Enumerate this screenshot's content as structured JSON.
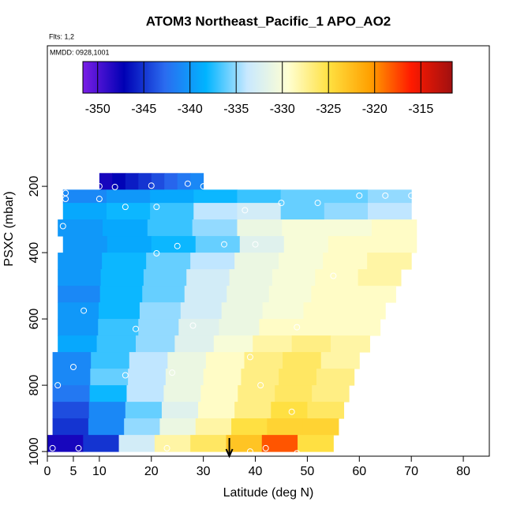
{
  "chart_data": {
    "type": "heatmap",
    "title": "ATOM3 Northeast_Pacific_1 APO_AO2",
    "annotations": [
      "Flts: 1,2",
      "MMDD: 0928,1001"
    ],
    "x_label": "Latitude (deg N)",
    "y_label": "PSXC (mbar)",
    "xlim": [
      0,
      85
    ],
    "xticks": [
      0,
      5,
      10,
      20,
      30,
      40,
      50,
      60,
      70,
      80
    ],
    "ylim": [
      1014,
      -224
    ],
    "yticks": [
      200,
      400,
      600,
      800,
      1000
    ],
    "colorbar_lim": [
      -351.6,
      -311.6
    ],
    "colorbar_ticks": [
      -350,
      -345,
      -340,
      -335,
      -330,
      -325,
      -320,
      -315
    ],
    "colorscale": [
      "#7a1ee6",
      "#0000b4",
      "#2a6cf0",
      "#00b4ff",
      "#c8e8ff",
      "#ffffd2",
      "#ffe040",
      "#ffa000",
      "#ff1a00",
      "#a01010"
    ],
    "arrow_x": 35,
    "rows": [
      {
        "p0": 160,
        "p1": 210,
        "x0": 10,
        "x1": 30,
        "values": [
          -348,
          -347,
          -346,
          -345,
          -344,
          -343,
          -342,
          -341
        ]
      },
      {
        "p0": 210,
        "p1": 250,
        "x0": 3,
        "x1": 70,
        "values": [
          -341,
          -340,
          -339,
          -338,
          -337,
          -336,
          -336,
          -335
        ]
      },
      {
        "p0": 250,
        "p1": 300,
        "x0": 3,
        "x1": 70,
        "values": [
          -339,
          -338,
          -337,
          -334,
          -333,
          -336,
          -335,
          -334
        ]
      },
      {
        "p0": 300,
        "p1": 350,
        "x0": 2,
        "x1": 71,
        "values": [
          -340,
          -339,
          -337,
          -335,
          -331,
          -330,
          -330,
          -329
        ]
      },
      {
        "p0": 350,
        "p1": 400,
        "x0": 3,
        "x1": 71,
        "values": [
          -340,
          -339,
          -338,
          -336,
          -332,
          -330,
          -329,
          -329
        ]
      },
      {
        "p0": 400,
        "p1": 450,
        "x0": 2,
        "x1": 70,
        "values": [
          -340,
          -338,
          -336,
          -334,
          -331,
          -330,
          -329,
          -328
        ]
      },
      {
        "p0": 450,
        "p1": 500,
        "x0": 2,
        "x1": 68,
        "values": [
          -340,
          -338,
          -336,
          -333,
          -331,
          -330,
          -329,
          -328
        ]
      },
      {
        "p0": 500,
        "p1": 550,
        "x0": 2,
        "x1": 67,
        "values": [
          -341,
          -338,
          -336,
          -333,
          -331,
          -330,
          -329,
          -329
        ]
      },
      {
        "p0": 550,
        "p1": 600,
        "x0": 2,
        "x1": 65,
        "values": [
          -340,
          -338,
          -335,
          -333,
          -331,
          -330,
          -329,
          -329
        ]
      },
      {
        "p0": 600,
        "p1": 650,
        "x0": 2,
        "x1": 64,
        "values": [
          -340,
          -337,
          -335,
          -332,
          -331,
          -329,
          -329,
          -329
        ]
      },
      {
        "p0": 650,
        "p1": 700,
        "x0": 2,
        "x1": 62,
        "values": [
          -339,
          -337,
          -335,
          -332,
          -330,
          -328,
          -327,
          -328
        ]
      },
      {
        "p0": 700,
        "p1": 750,
        "x0": 1,
        "x1": 60,
        "values": [
          -341,
          -337,
          -334,
          -331,
          -329,
          -327,
          -326,
          -328
        ]
      },
      {
        "p0": 750,
        "p1": 800,
        "x0": 1,
        "x1": 59,
        "values": [
          -341,
          -336,
          -334,
          -331,
          -329,
          -327,
          -326,
          -327
        ]
      },
      {
        "p0": 800,
        "p1": 850,
        "x0": 1,
        "x1": 58,
        "values": [
          -342,
          -338,
          -334,
          -331,
          -329,
          -327,
          -326,
          -327
        ]
      },
      {
        "p0": 850,
        "p1": 900,
        "x0": 1,
        "x1": 57,
        "values": [
          -344,
          -341,
          -336,
          -332,
          -329,
          -327,
          -325,
          -326
        ]
      },
      {
        "p0": 900,
        "p1": 950,
        "x0": 1,
        "x1": 56,
        "values": [
          -345,
          -341,
          -335,
          -331,
          -328,
          -325,
          -324,
          -324
        ]
      },
      {
        "p0": 950,
        "p1": 1000,
        "x0": 0,
        "x1": 55,
        "values": [
          -348,
          -345,
          -333,
          -328,
          -326,
          -323,
          -318,
          -325
        ]
      }
    ],
    "points": {
      "x": [
        10,
        13,
        20,
        27,
        30,
        3.5,
        3.5,
        10,
        15,
        21,
        38,
        45,
        52,
        60,
        65,
        70,
        3,
        25,
        34,
        21,
        40,
        55,
        7,
        17,
        28,
        48,
        5,
        15,
        24,
        39,
        2,
        41,
        47,
        1,
        6,
        23,
        39,
        42,
        48
      ],
      "y": [
        200,
        202,
        198,
        192,
        200,
        220,
        238,
        238,
        262,
        262,
        272,
        250,
        250,
        228,
        228,
        228,
        320,
        380,
        375,
        402,
        375,
        470,
        575,
        630,
        620,
        625,
        745,
        770,
        762,
        715,
        800,
        800,
        880,
        990,
        990,
        990,
        1000,
        990,
        1005
      ]
    }
  }
}
